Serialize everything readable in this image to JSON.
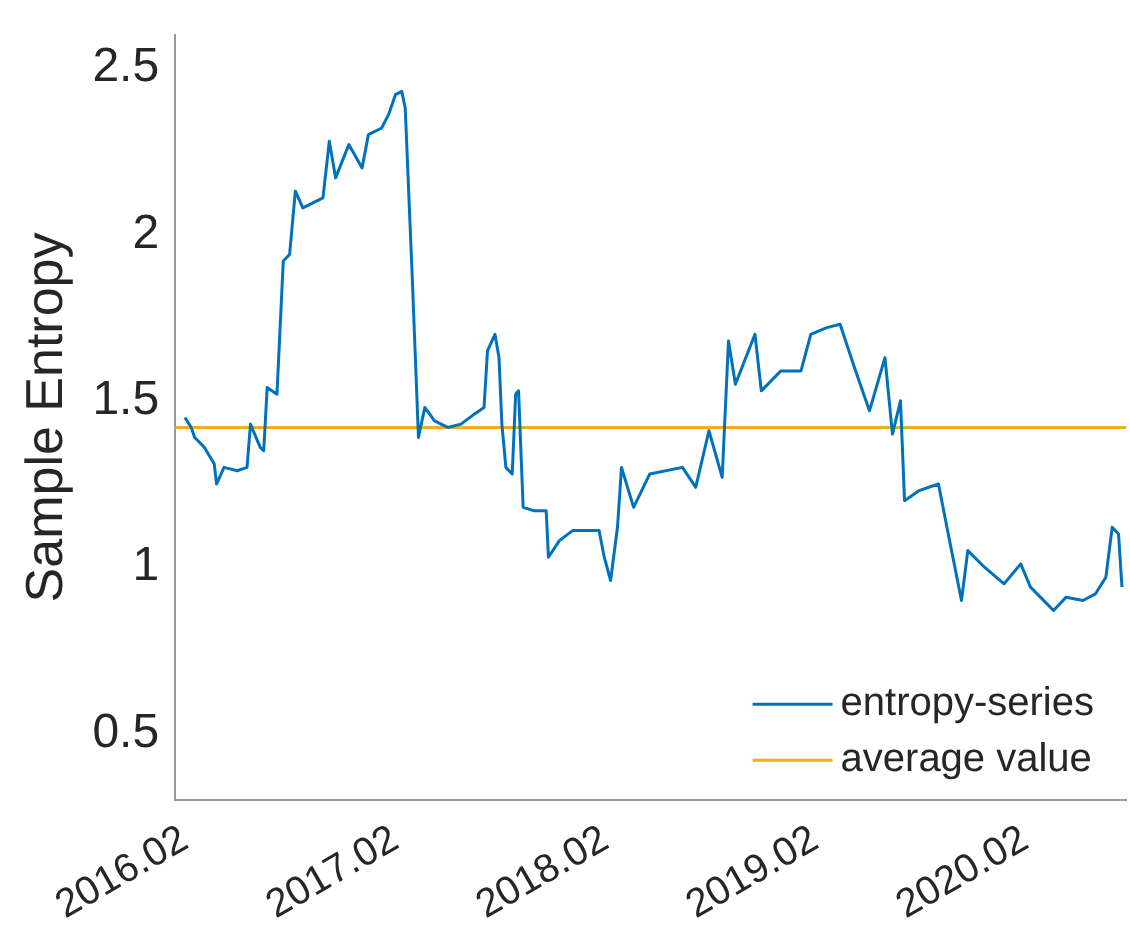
{
  "chart_data": {
    "type": "line",
    "ylabel": "Sample Entropy",
    "xlim": [
      "2016-01-15",
      "2020-07-25"
    ],
    "xticks": [
      {
        "value": "2016-02",
        "label": "2016.02"
      },
      {
        "value": "2017-02",
        "label": "2017.02"
      },
      {
        "value": "2018-02",
        "label": "2018.02"
      },
      {
        "value": "2019-02",
        "label": "2019.02"
      },
      {
        "value": "2020-02",
        "label": "2020.02"
      }
    ],
    "ylim": [
      0.3,
      2.6
    ],
    "yticks": [
      0.5,
      1,
      1.5,
      2,
      2.5
    ],
    "grid": false,
    "legend": "bottom right",
    "marker": "none",
    "line_style": "solid",
    "series": [
      {
        "name": "entropy-series",
        "color": "#0072bd",
        "x": [
          "2016-02-01",
          "2016-02-12",
          "2016-02-18",
          "2016-03-06",
          "2016-03-23",
          "2016-03-27",
          "2016-04-09",
          "2016-05-02",
          "2016-05-19",
          "2016-05-25",
          "2016-06-11",
          "2016-06-17",
          "2016-06-23",
          "2016-07-10",
          "2016-07-21",
          "2016-08-01",
          "2016-08-11",
          "2016-08-24",
          "2016-09-28",
          "2016-10-09",
          "2016-10-20",
          "2016-11-12",
          "2016-12-05",
          "2016-12-16",
          "2017-01-08",
          "2017-01-20",
          "2017-02-01",
          "2017-02-12",
          "2017-02-18",
          "2017-03-02",
          "2017-03-13",
          "2017-03-24",
          "2017-04-10",
          "2017-05-03",
          "2017-05-26",
          "2017-06-18",
          "2017-07-05",
          "2017-07-11",
          "2017-07-24",
          "2017-07-31",
          "2017-08-05",
          "2017-08-12",
          "2017-08-23",
          "2017-08-29",
          "2017-09-03",
          "2017-09-11",
          "2017-09-29",
          "2017-10-21",
          "2017-10-25",
          "2017-11-13",
          "2017-12-06",
          "2018-01-21",
          "2018-01-30",
          "2018-02-10",
          "2018-02-22",
          "2018-03-01",
          "2018-03-22",
          "2018-04-19",
          "2018-06-15",
          "2018-07-08",
          "2018-07-31",
          "2018-08-23",
          "2018-09-03",
          "2018-09-15",
          "2018-10-19",
          "2018-10-30",
          "2018-12-03",
          "2019-01-07",
          "2019-01-24",
          "2019-02-21",
          "2019-03-16",
          "2019-04-08",
          "2019-05-06",
          "2019-06-02",
          "2019-06-15",
          "2019-06-29",
          "2019-07-06",
          "2019-07-31",
          "2019-09-03",
          "2019-09-20",
          "2019-10-13",
          "2019-10-24",
          "2019-11-22",
          "2019-12-26",
          "2020-01-24",
          "2020-02-10",
          "2020-03-21",
          "2020-04-12",
          "2020-05-11",
          "2020-06-02",
          "2020-06-20",
          "2020-07-01",
          "2020-07-12",
          "2020-07-18"
        ],
        "values": [
          1.45,
          1.42,
          1.39,
          1.36,
          1.31,
          1.25,
          1.3,
          1.29,
          1.3,
          1.43,
          1.36,
          1.35,
          1.54,
          1.52,
          1.92,
          1.94,
          2.13,
          2.08,
          2.11,
          2.28,
          2.17,
          2.27,
          2.2,
          2.3,
          2.32,
          2.36,
          2.42,
          2.43,
          2.38,
          1.88,
          1.39,
          1.48,
          1.44,
          1.42,
          1.43,
          1.46,
          1.48,
          1.65,
          1.7,
          1.63,
          1.43,
          1.3,
          1.28,
          1.52,
          1.53,
          1.18,
          1.17,
          1.17,
          1.03,
          1.08,
          1.11,
          1.11,
          1.03,
          0.96,
          1.12,
          1.3,
          1.18,
          1.28,
          1.3,
          1.24,
          1.41,
          1.27,
          1.68,
          1.55,
          1.7,
          1.53,
          1.59,
          1.59,
          1.7,
          1.72,
          1.73,
          1.61,
          1.47,
          1.63,
          1.4,
          1.5,
          1.2,
          1.23,
          1.25,
          1.1,
          0.9,
          1.05,
          1.0,
          0.95,
          1.01,
          0.94,
          0.87,
          0.91,
          0.9,
          0.92,
          0.97,
          1.12,
          1.1,
          0.94
        ]
      },
      {
        "name": "average value",
        "color": "#edb120",
        "x": [
          "2016-01-15",
          "2020-07-25"
        ],
        "values": [
          1.42,
          1.42
        ]
      }
    ]
  }
}
